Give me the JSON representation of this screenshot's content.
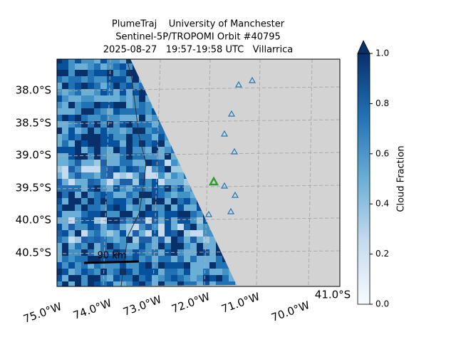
{
  "title": {
    "lines": [
      "PlumeTraj    University of Manchester",
      "Sentinel-5P/TROPOMI Orbit #40795",
      "2025-08-27   19:57-19:58 UTC   Villarrica"
    ]
  },
  "map": {
    "lat_labels": [
      "38.0°S",
      "38.5°S",
      "39.0°S",
      "39.5°S",
      "40.0°S",
      "40.5°S"
    ],
    "lon_labels": [
      "75.0°W",
      "74.0°W",
      "73.0°W",
      "72.0°W",
      "71.0°W",
      "70.0°W"
    ],
    "corner_label": "41.0°S",
    "scale_bar": "90 km"
  },
  "colorbar": {
    "label": "Cloud Fraction",
    "range": [
      0,
      1
    ],
    "ticks": [
      {
        "value": 0,
        "label": "0.0"
      },
      {
        "value": 0.2,
        "label": "0.2"
      },
      {
        "value": 0.4,
        "label": "0.4"
      },
      {
        "value": 0.6,
        "label": "0.6"
      },
      {
        "value": 0.8,
        "label": "0.8"
      },
      {
        "value": 1,
        "label": "1.0"
      }
    ]
  }
}
